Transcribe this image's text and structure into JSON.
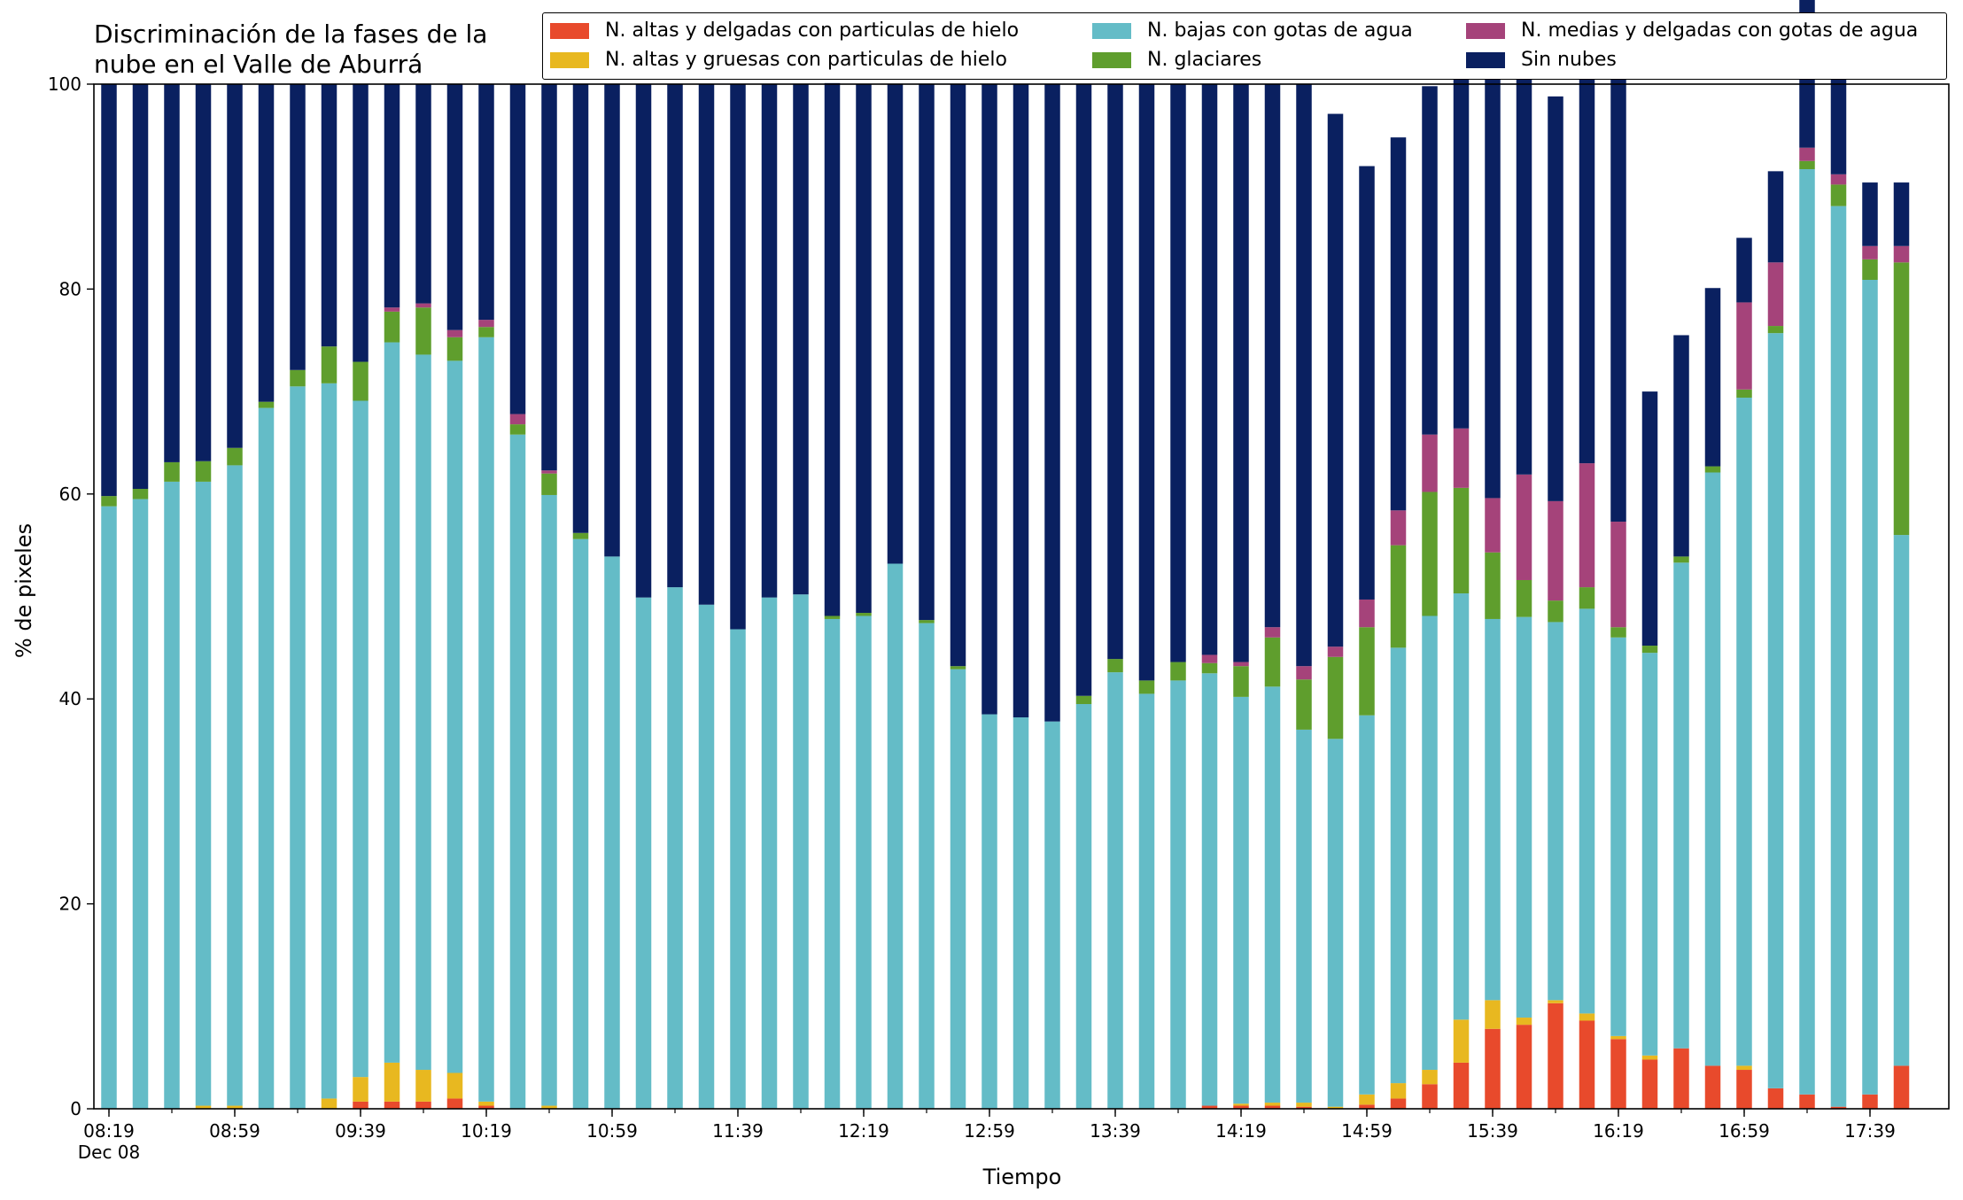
{
  "page": {
    "title": "Discriminación de la fases de la nube en el Valle de Aburrá"
  },
  "chart_data": {
    "type": "bar",
    "stacked": true,
    "title": "Discriminación de la fases de la nube en el Valle de Aburrá",
    "xlabel": "Tiempo",
    "ylabel": "% de pixeles",
    "ylim": [
      0,
      100
    ],
    "yticks": [
      0,
      20,
      40,
      60,
      80,
      100
    ],
    "grid": false,
    "legend_position": "top, above plot, 3 columns",
    "xtick_labels": [
      {
        "at_index": 0,
        "label": "08:19",
        "sublabel": "Dec 08"
      },
      {
        "at_index": 4,
        "label": "08:59"
      },
      {
        "at_index": 8,
        "label": "09:39"
      },
      {
        "at_index": 12,
        "label": "10:19"
      },
      {
        "at_index": 16,
        "label": "10:59"
      },
      {
        "at_index": 20,
        "label": "11:39"
      },
      {
        "at_index": 24,
        "label": "12:19"
      },
      {
        "at_index": 28,
        "label": "12:59"
      },
      {
        "at_index": 32,
        "label": "13:39"
      },
      {
        "at_index": 36,
        "label": "14:19"
      },
      {
        "at_index": 40,
        "label": "14:59"
      },
      {
        "at_index": 44,
        "label": "15:39"
      },
      {
        "at_index": 48,
        "label": "16:19"
      },
      {
        "at_index": 52,
        "label": "16:59"
      },
      {
        "at_index": 56,
        "label": "17:39"
      }
    ],
    "x": [
      "08:19",
      "08:29",
      "08:39",
      "08:49",
      "08:59",
      "09:09",
      "09:19",
      "09:29",
      "09:39",
      "09:49",
      "09:59",
      "10:09",
      "10:19",
      "10:29",
      "10:39",
      "10:49",
      "10:59",
      "11:09",
      "11:19",
      "11:29",
      "11:39",
      "11:49",
      "11:59",
      "12:09",
      "12:19",
      "12:29",
      "12:39",
      "12:49",
      "12:59",
      "13:09",
      "13:19",
      "13:29",
      "13:39",
      "13:49",
      "13:59",
      "14:09",
      "14:19",
      "14:29",
      "14:39",
      "14:49",
      "14:59",
      "15:09",
      "15:19",
      "15:29",
      "15:39",
      "15:49",
      "15:59",
      "16:09",
      "16:19",
      "16:29",
      "16:39",
      "16:49",
      "16:59",
      "17:09",
      "17:19",
      "17:29",
      "17:39",
      "17:49"
    ],
    "series": [
      {
        "name": "N. altas y delgadas con particulas de hielo",
        "color": "#e84a2c",
        "values": [
          0,
          0,
          0,
          0,
          0,
          0,
          0,
          0,
          0.7,
          0.7,
          0.7,
          1,
          0.3,
          0,
          0,
          0,
          0,
          0,
          0,
          0,
          0,
          0,
          0,
          0,
          0,
          0,
          0,
          0,
          0,
          0,
          0,
          0,
          0,
          0,
          0,
          0.3,
          0.3,
          0.3,
          0.2,
          0,
          0.4,
          1,
          2.4,
          4.5,
          7.8,
          8.2,
          10.3,
          8.6,
          6.8,
          4.8,
          5.9,
          4.2,
          3.8,
          2,
          1.4,
          0.2,
          1.4,
          4.2
        ]
      },
      {
        "name": "N. altas y gruesas con particulas de hielo",
        "color": "#e8b820",
        "values": [
          0,
          0,
          0,
          0.3,
          0.3,
          0,
          0,
          1,
          2.4,
          3.8,
          3.1,
          2.5,
          0.4,
          0,
          0.3,
          0,
          0,
          0,
          0,
          0,
          0,
          0,
          0,
          0,
          0,
          0,
          0,
          0,
          0,
          0,
          0,
          0,
          0,
          0,
          0,
          0,
          0.2,
          0.3,
          0.4,
          0.2,
          1,
          1.5,
          1.4,
          4.2,
          2.8,
          0.7,
          0.3,
          0.7,
          0.3,
          0.4,
          0,
          0,
          0.4,
          0,
          0,
          0,
          0,
          0
        ]
      },
      {
        "name": "N. bajas con gotas de agua",
        "color": "#64bcc7",
        "values": [
          58.8,
          59.5,
          61.2,
          60.9,
          62.5,
          68.4,
          70.5,
          69.8,
          66,
          70.3,
          69.8,
          69.5,
          74.6,
          65.8,
          59.6,
          55.6,
          53.9,
          49.9,
          50.9,
          49.2,
          46.8,
          49.9,
          50.2,
          47.8,
          48.1,
          53.2,
          47.4,
          42.9,
          38.5,
          38.2,
          37.8,
          39.5,
          42.6,
          40.5,
          41.8,
          42.2,
          39.7,
          40.6,
          36.4,
          35.9,
          37,
          42.5,
          44.3,
          41.6,
          37.2,
          39.1,
          36.9,
          39.5,
          38.9,
          39.3,
          47.4,
          57.9,
          65.2,
          73.7,
          90.3,
          87.9,
          79.5,
          51.8
        ]
      },
      {
        "name": "N. glaciares",
        "color": "#5f9e2d",
        "values": [
          1,
          1,
          1.9,
          2,
          1.7,
          0.6,
          1.6,
          3.6,
          3.8,
          3,
          4.6,
          2.3,
          1,
          1,
          2.1,
          0.6,
          0,
          0,
          0,
          0,
          0,
          0,
          0,
          0.3,
          0.3,
          0,
          0.3,
          0.3,
          0,
          0,
          0,
          0.8,
          1.3,
          1.3,
          1.8,
          1,
          3,
          4.8,
          4.9,
          8,
          8.6,
          10,
          12.1,
          10.3,
          6.5,
          3.6,
          2.1,
          2.1,
          1,
          0.7,
          0.6,
          0.6,
          0.8,
          0.7,
          0.8,
          2.1,
          2,
          26.6
        ]
      },
      {
        "name": "N. medias y delgadas con gotas de agua",
        "color": "#a5437a",
        "values": [
          0,
          0,
          0,
          0,
          0,
          0,
          0,
          0,
          0,
          0.4,
          0.4,
          0.7,
          0.7,
          1,
          0.3,
          0,
          0,
          0,
          0,
          0,
          0,
          0,
          0,
          0,
          0,
          0,
          0,
          0,
          0,
          0,
          0,
          0,
          0,
          0,
          0,
          0.8,
          0.4,
          1,
          1.3,
          1,
          2.7,
          3.4,
          5.6,
          5.8,
          5.3,
          10.3,
          9.7,
          12.1,
          10.3,
          0,
          0,
          0,
          8.5,
          6.2,
          1.3,
          1,
          1.3,
          1.6
        ]
      },
      {
        "name": "Sin nubes",
        "color": "#0a2060",
        "values": [
          40.2,
          39.5,
          36.9,
          36.8,
          35.5,
          31,
          27.9,
          25.6,
          27.1,
          21.8,
          21.4,
          24,
          23,
          32.2,
          37.7,
          43.8,
          46.1,
          50.1,
          49.1,
          50.8,
          53.2,
          50.1,
          49.8,
          52,
          51.6,
          46.8,
          52.3,
          56.8,
          61.5,
          61.8,
          62.2,
          59.7,
          56.1,
          58.2,
          56.4,
          55.7,
          56.4,
          53,
          56.8,
          52,
          42.3,
          36.4,
          34,
          39.8,
          41.9,
          40.2,
          39.5,
          40.8,
          44.3,
          24.8,
          21.6,
          17.4,
          6.3,
          8.9,
          15.8,
          15.8,
          6.2,
          6.2
        ]
      }
    ]
  },
  "legend": {
    "items": [
      {
        "label": "N. altas y delgadas con particulas de hielo",
        "color": "#e84a2c"
      },
      {
        "label": "N. altas y gruesas con particulas de hielo",
        "color": "#e8b820"
      },
      {
        "label": "N. bajas con gotas de agua",
        "color": "#64bcc7"
      },
      {
        "label": "N. glaciares",
        "color": "#5f9e2d"
      },
      {
        "label": "N. medias y delgadas con gotas de agua",
        "color": "#a5437a"
      },
      {
        "label": "Sin nubes",
        "color": "#0a2060"
      }
    ]
  }
}
